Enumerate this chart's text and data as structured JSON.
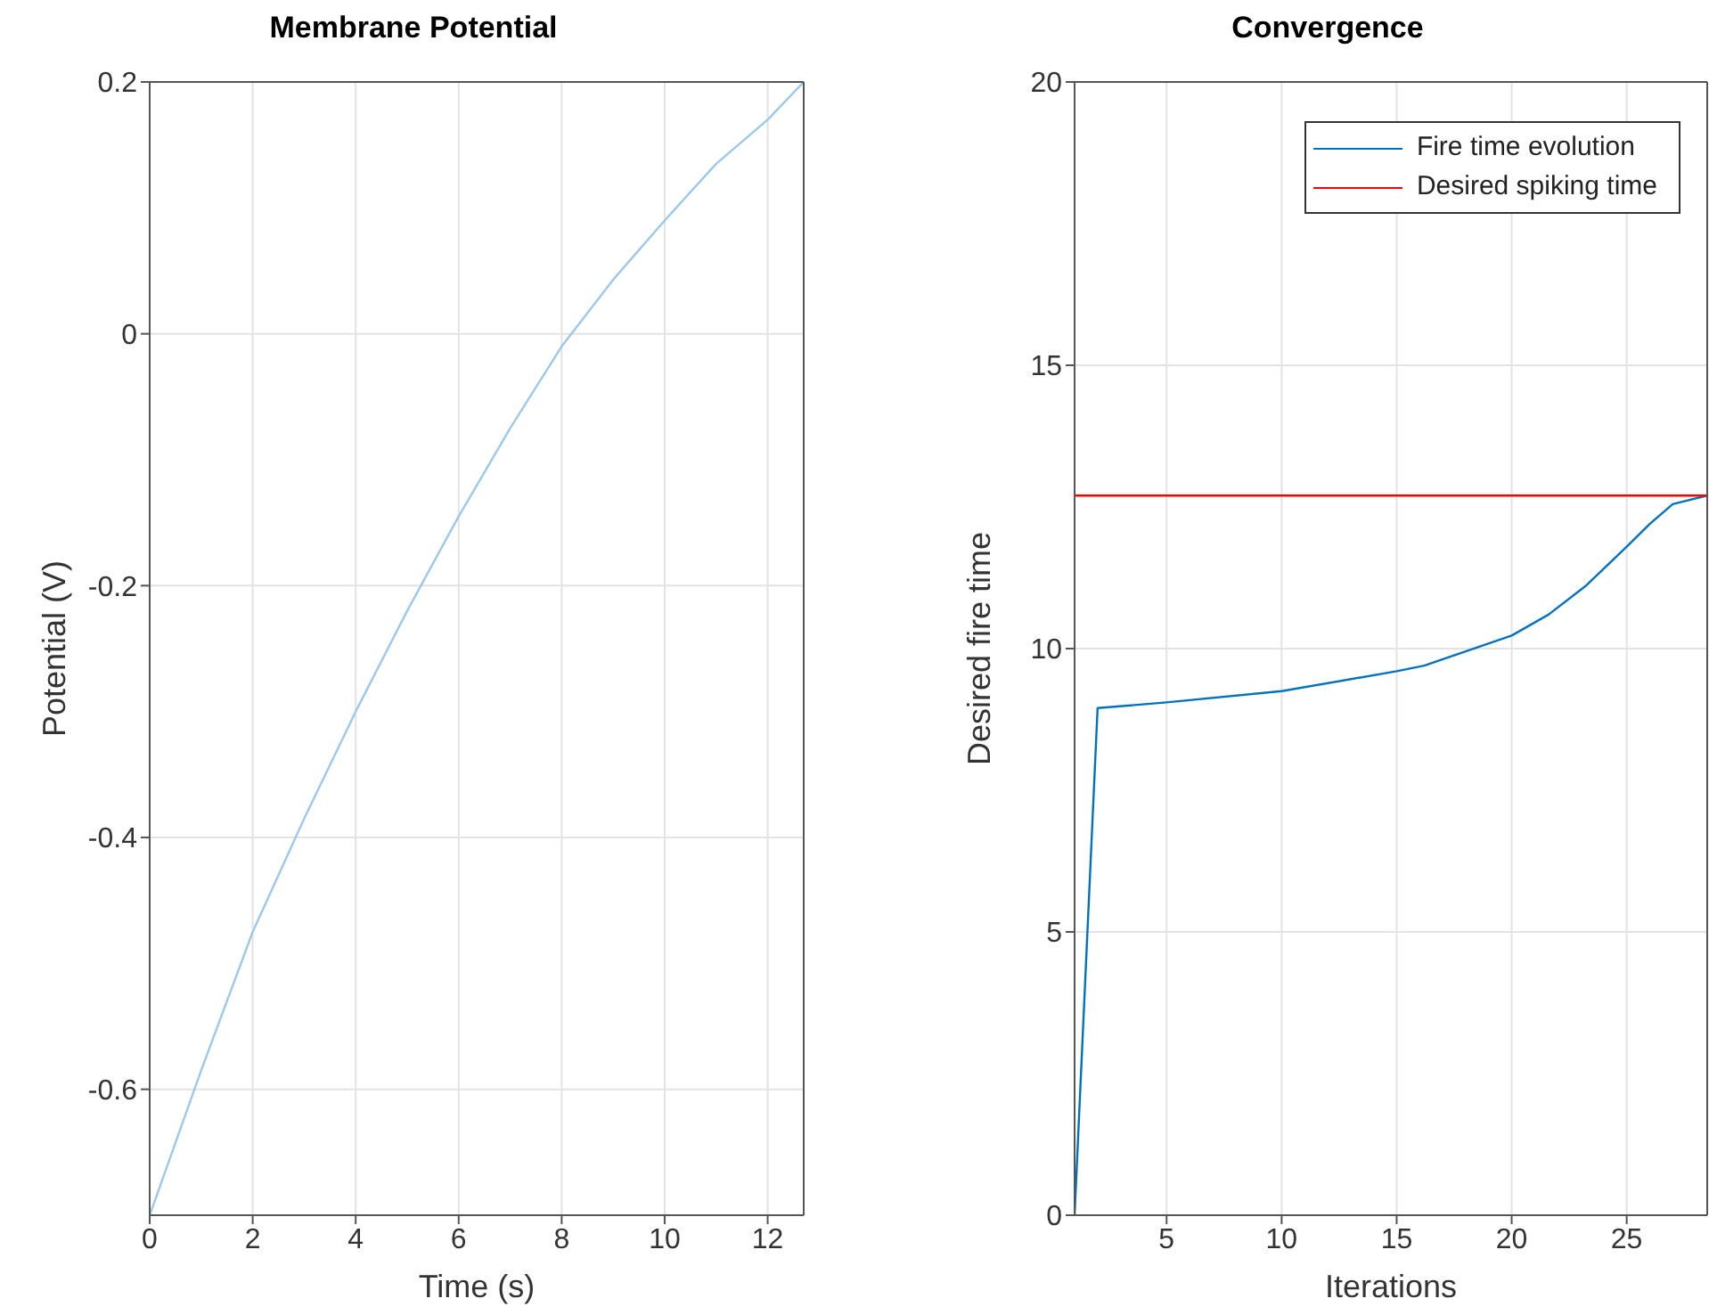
{
  "chart_data": [
    {
      "type": "line",
      "title": "Membrane Potential",
      "xlabel": "Time (s)",
      "ylabel": "Potential (V)",
      "x": [
        0,
        1,
        2,
        3,
        4,
        5,
        6,
        7,
        8,
        9,
        10,
        11,
        12,
        12.7
      ],
      "series": [
        {
          "color": "#9dc8ea",
          "values": [
            -0.7,
            -0.585,
            -0.475,
            -0.385,
            -0.3,
            -0.22,
            -0.145,
            -0.075,
            -0.01,
            0.043,
            0.09,
            0.135,
            0.17,
            0.2
          ]
        }
      ],
      "xlim": [
        0,
        12.7
      ],
      "xticks": [
        0,
        2,
        4,
        6,
        8,
        10,
        12
      ],
      "ylim": [
        -0.7,
        0.2
      ],
      "yticks": [
        -0.6,
        -0.4,
        -0.2,
        0,
        0.2
      ],
      "grid": true,
      "legend": false
    },
    {
      "type": "line",
      "title": "Convergence",
      "xlabel": "Iterations",
      "ylabel": "Desired fire time",
      "series": [
        {
          "name": "Fire time evolution",
          "color": "#0072bd",
          "x": [
            1,
            2,
            5,
            10,
            15,
            16.2,
            18,
            20,
            21.6,
            23.2,
            25,
            26,
            27,
            28.5
          ],
          "values": [
            0,
            8.95,
            9.05,
            9.25,
            9.6,
            9.7,
            9.95,
            10.23,
            10.6,
            11.1,
            11.8,
            12.2,
            12.55,
            12.7
          ]
        },
        {
          "name": "Desired spiking time",
          "color": "#ff0000",
          "x": [
            1,
            28.5
          ],
          "values": [
            12.7,
            12.7
          ]
        }
      ],
      "xlim": [
        1,
        28.5
      ],
      "xticks": [
        5,
        10,
        15,
        20,
        25
      ],
      "ylim": [
        0,
        20
      ],
      "yticks": [
        0,
        5,
        10,
        15,
        20
      ],
      "grid": true,
      "legend": "top right"
    }
  ]
}
